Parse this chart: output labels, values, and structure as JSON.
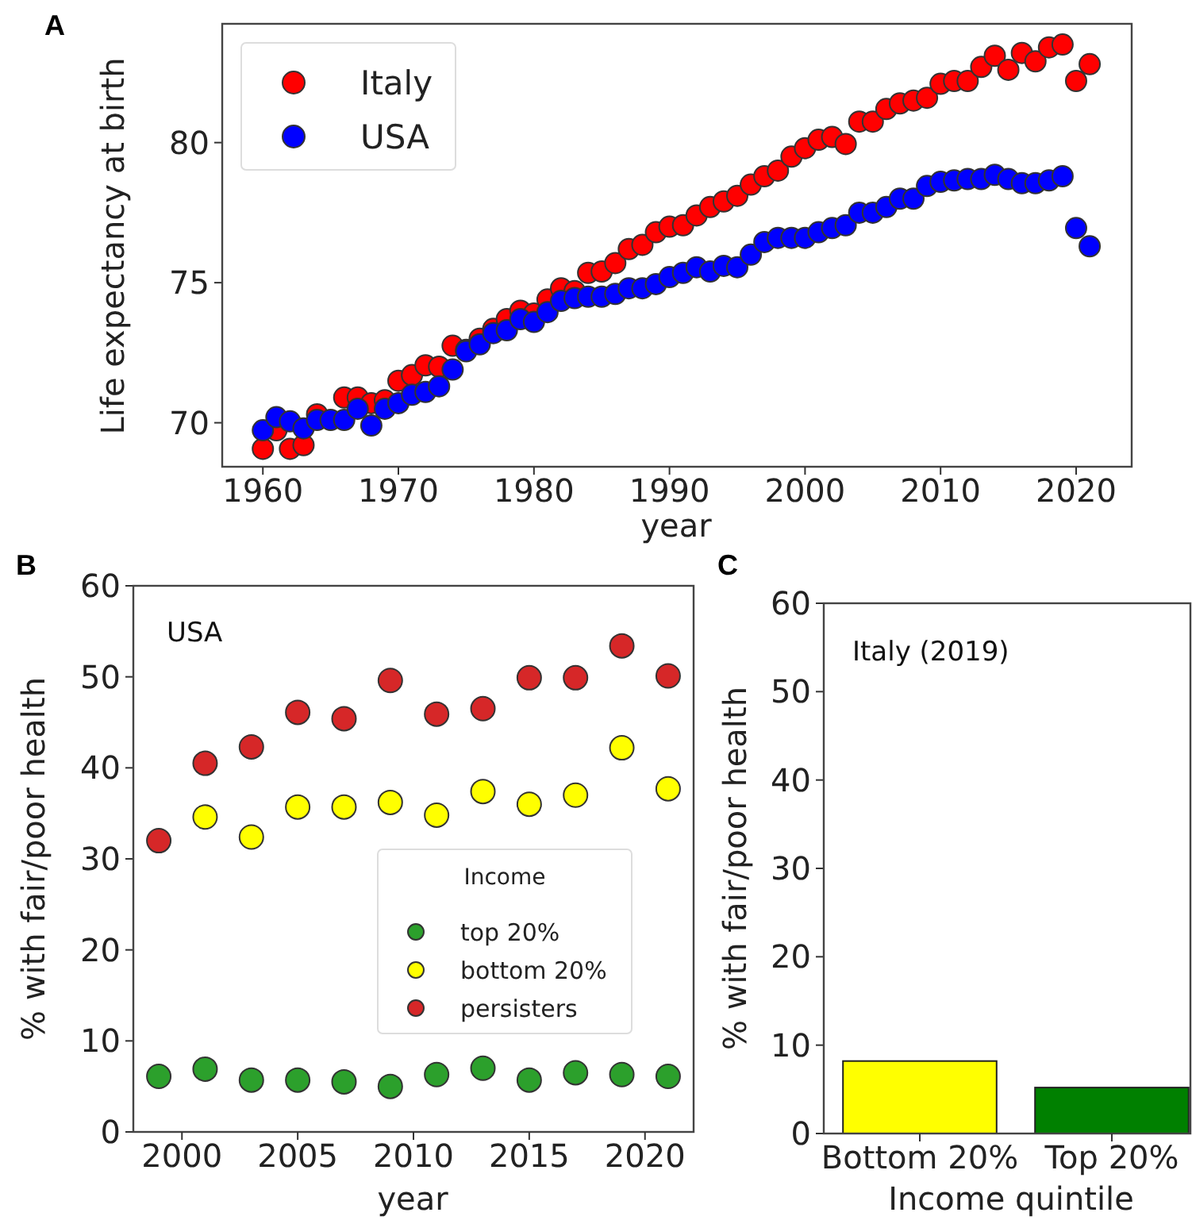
{
  "chart_data": [
    {
      "type": "scatter",
      "annotations": [
        "A"
      ],
      "xlabel": "year",
      "ylabel": "Life expectancy at birth",
      "xlim": [
        1957,
        2024.1
      ],
      "ylim": [
        68.43,
        84.24
      ],
      "xticks": [
        1960,
        1970,
        1980,
        1990,
        2000,
        2010,
        2020
      ],
      "yticks": [
        70,
        75,
        80
      ],
      "legend": "top left",
      "marker": "circle",
      "x": [
        1960,
        1961,
        1962,
        1963,
        1964,
        1965,
        1966,
        1967,
        1968,
        1969,
        1970,
        1971,
        1972,
        1973,
        1974,
        1975,
        1976,
        1977,
        1978,
        1979,
        1980,
        1981,
        1982,
        1983,
        1984,
        1985,
        1986,
        1987,
        1988,
        1989,
        1990,
        1991,
        1992,
        1993,
        1994,
        1995,
        1996,
        1997,
        1998,
        1999,
        2000,
        2001,
        2002,
        2003,
        2004,
        2005,
        2006,
        2007,
        2008,
        2009,
        2010,
        2011,
        2012,
        2013,
        2014,
        2015,
        2016,
        2017,
        2018,
        2019,
        2020,
        2021
      ],
      "series": [
        {
          "name": "Italy",
          "color": "#ff0000",
          "values": [
            69.07,
            69.73,
            69.07,
            69.2,
            70.3,
            null,
            70.9,
            70.9,
            70.7,
            70.8,
            71.5,
            71.7,
            72.05,
            72.0,
            72.75,
            72.6,
            73.0,
            73.35,
            73.7,
            74.0,
            73.9,
            74.4,
            74.8,
            74.7,
            75.35,
            75.4,
            75.7,
            76.2,
            76.35,
            76.8,
            77.0,
            77.05,
            77.4,
            77.7,
            77.9,
            78.1,
            78.5,
            78.8,
            79.0,
            79.5,
            79.8,
            80.1,
            80.2,
            79.95,
            80.75,
            80.75,
            81.2,
            81.4,
            81.5,
            81.6,
            82.1,
            82.2,
            82.2,
            82.7,
            83.1,
            82.6,
            83.2,
            82.9,
            83.4,
            83.5,
            82.2,
            82.8
          ]
        },
        {
          "name": "USA",
          "color": "#0000ff",
          "values": [
            69.73,
            70.2,
            70.05,
            69.8,
            70.1,
            70.1,
            70.1,
            70.5,
            69.9,
            70.5,
            70.7,
            71.0,
            71.1,
            71.3,
            71.9,
            72.55,
            72.8,
            73.2,
            73.3,
            73.7,
            73.6,
            73.95,
            74.35,
            74.45,
            74.5,
            74.5,
            74.6,
            74.8,
            74.8,
            74.95,
            75.2,
            75.35,
            75.55,
            75.4,
            75.6,
            75.55,
            76.0,
            76.45,
            76.6,
            76.6,
            76.6,
            76.8,
            76.95,
            77.05,
            77.5,
            77.5,
            77.7,
            78.0,
            78.0,
            78.45,
            78.6,
            78.65,
            78.7,
            78.7,
            78.85,
            78.7,
            78.55,
            78.55,
            78.65,
            78.8,
            76.95,
            76.3
          ]
        }
      ]
    },
    {
      "type": "scatter",
      "title": "USA",
      "annotations": [
        "B"
      ],
      "xlabel": "year",
      "ylabel": "% with fair/poor health",
      "xlim": [
        1997.9,
        2022.1
      ],
      "ylim": [
        0,
        60
      ],
      "xticks": [
        2000,
        2005,
        2010,
        2015,
        2020
      ],
      "yticks": [
        0,
        10,
        20,
        30,
        40,
        50,
        60
      ],
      "legend": "bottom right",
      "legend_title": "Income",
      "marker": "circle",
      "x": [
        1999,
        2001,
        2003,
        2005,
        2007,
        2009,
        2011,
        2013,
        2015,
        2017,
        2019,
        2021
      ],
      "series": [
        {
          "name": "top 20%",
          "color": "#2ca02c",
          "values": [
            6.1,
            6.9,
            5.7,
            5.7,
            5.5,
            5.0,
            6.3,
            7.0,
            5.7,
            6.5,
            6.3,
            6.1
          ]
        },
        {
          "name": "bottom 20%",
          "color": "#ffff00",
          "values": [
            null,
            34.6,
            32.4,
            35.7,
            35.7,
            36.2,
            34.8,
            37.4,
            36.0,
            37.0,
            42.2,
            37.7
          ]
        },
        {
          "name": "persisters",
          "color": "#d62728",
          "values": [
            32.0,
            40.5,
            42.3,
            46.1,
            45.4,
            49.6,
            45.9,
            46.5,
            49.9,
            49.9,
            53.4,
            50.1
          ]
        }
      ]
    },
    {
      "type": "bar",
      "title": "Italy (2019)",
      "annotations": [
        "C"
      ],
      "xlabel": "Income quintile",
      "ylabel": "% with fair/poor health",
      "ylim": [
        0,
        60
      ],
      "yticks": [
        0,
        10,
        20,
        30,
        40,
        50,
        60
      ],
      "categories": [
        "Bottom 20%",
        "Top 20%"
      ],
      "values": [
        8.2,
        5.2
      ],
      "colors": [
        "#ffff00",
        "#008000"
      ]
    }
  ]
}
